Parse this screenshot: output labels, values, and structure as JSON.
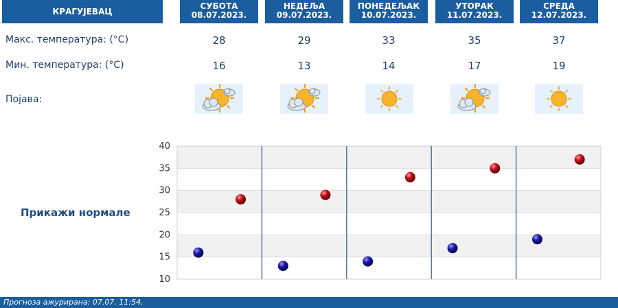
{
  "header": {
    "city": "КРАГУЈЕВАЦ",
    "days": [
      {
        "name": "СУБОТА",
        "date": "08.07.2023."
      },
      {
        "name": "НЕДЕЉА",
        "date": "09.07.2023."
      },
      {
        "name": "ПОНЕДЕЉАК",
        "date": "10.07.2023."
      },
      {
        "name": "УТОРАК",
        "date": "11.07.2023."
      },
      {
        "name": "СРЕДА",
        "date": "12.07.2023."
      }
    ]
  },
  "rows": {
    "max_label": "Макс. температура: (°C)",
    "min_label": "Мин. температура: (°C)",
    "phenomenon_label": "Појава:",
    "max": [
      "28",
      "29",
      "33",
      "35",
      "37"
    ],
    "min": [
      "16",
      "13",
      "14",
      "17",
      "19"
    ],
    "phenomena_icons": [
      "sun-behind-clouds-icon",
      "sun-behind-clouds-icon",
      "sun-icon",
      "sun-behind-clouds-icon",
      "sun-icon"
    ]
  },
  "show_normals_label": "Прикажи нормале",
  "footer": {
    "text": "Прогноза ажурирана:  07.07.  11:54."
  },
  "colors": {
    "header_bg": "#1b5e9f",
    "max_point": "#c0101a",
    "min_point": "#1a1aa8",
    "text": "#1f3f66"
  },
  "chart_data": {
    "type": "scatter",
    "categories": [
      "СУБОТА",
      "НЕДЕЉА",
      "ПОНЕДЕЉАК",
      "УТОРАК",
      "СРЕДА"
    ],
    "ylim": [
      10,
      40
    ],
    "yticks": [
      "10",
      "15",
      "20",
      "25",
      "30",
      "35",
      "40"
    ],
    "series": [
      {
        "values": [
          28,
          29,
          33,
          35,
          37
        ],
        "color": "#c0101a"
      },
      {
        "values": [
          16,
          13,
          14,
          17,
          19
        ],
        "color": "#1a1aa8"
      }
    ],
    "grid": true
  }
}
